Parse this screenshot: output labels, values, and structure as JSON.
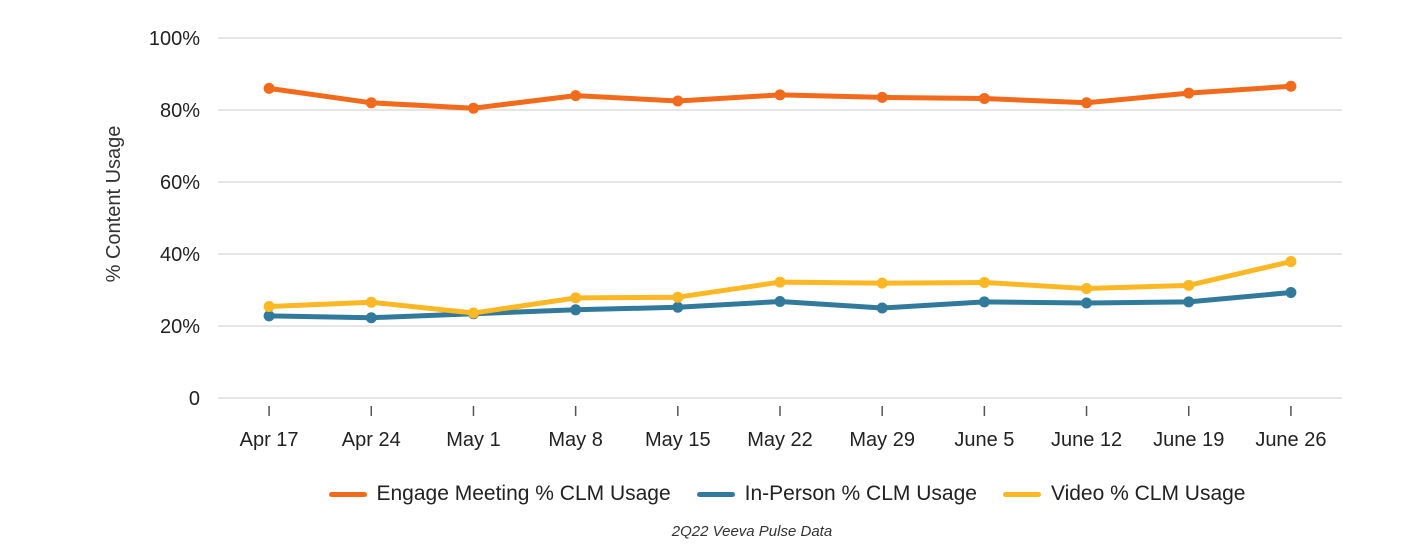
{
  "chart_data": {
    "type": "line",
    "ylabel": "% Content Usage",
    "xlabel": "",
    "categories": [
      "Apr 17",
      "Apr 24",
      "May 1",
      "May 8",
      "May 15",
      "May 22",
      "May 29",
      "June 5",
      "June 12",
      "June 19",
      "June 26"
    ],
    "ylim": [
      0,
      100
    ],
    "yticks": [
      0,
      20,
      40,
      60,
      80,
      100
    ],
    "ytick_labels": [
      "0",
      "20%",
      "40%",
      "60%",
      "80%",
      "100%"
    ],
    "grid": true,
    "legend_position": "bottom",
    "series": [
      {
        "name": "Engage Meeting % CLM Usage",
        "color": "#F26B1D",
        "values": [
          86,
          82,
          80.5,
          84,
          82.5,
          84.2,
          83.5,
          83.2,
          82,
          84.7,
          86.6
        ]
      },
      {
        "name": "In-Person % CLM Usage",
        "color": "#327A9C",
        "values": [
          22.8,
          22.3,
          23.4,
          24.5,
          25.2,
          26.8,
          25,
          26.7,
          26.4,
          26.7,
          29.3
        ]
      },
      {
        "name": "Video % CLM Usage",
        "color": "#FBB824",
        "values": [
          25.4,
          26.6,
          23.6,
          27.8,
          28,
          32.2,
          31.9,
          32.1,
          30.4,
          31.3,
          37.9
        ]
      }
    ]
  },
  "footnote": "2Q22 Veeva Pulse Data"
}
